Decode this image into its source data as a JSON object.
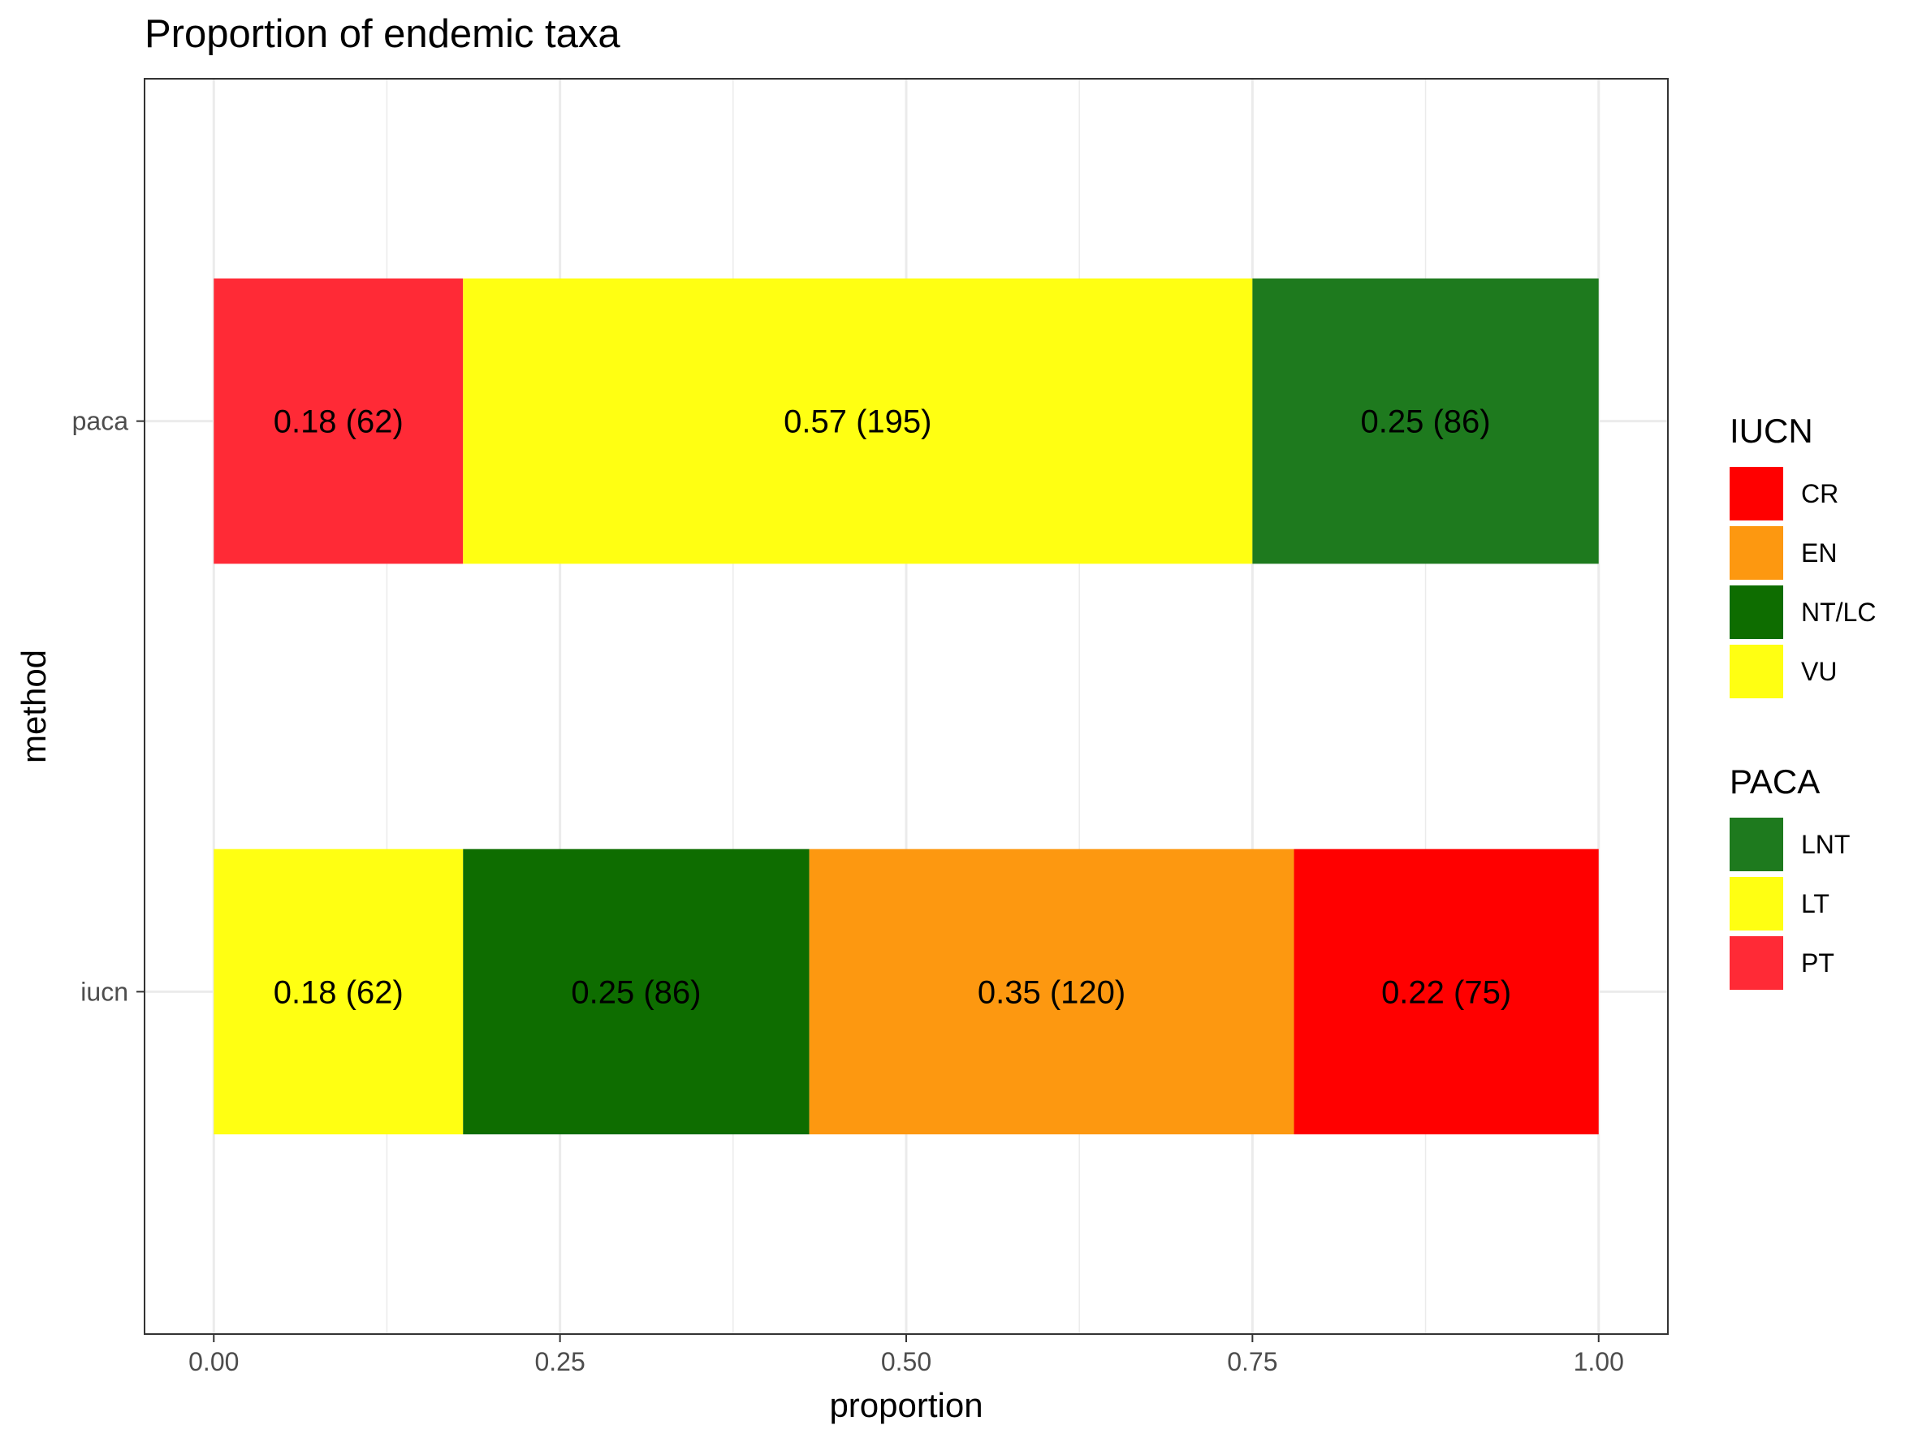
{
  "chart_data": {
    "type": "bar",
    "orientation": "horizontal",
    "stacked": true,
    "title": "Proportion of endemic taxa",
    "xlabel": "proportion",
    "ylabel": "method",
    "xlim": [
      -0.05,
      1.05
    ],
    "xticks": [
      0,
      0.25,
      0.5,
      0.75,
      1
    ],
    "xtick_labels": [
      "0.00",
      "0.25",
      "0.50",
      "0.75",
      "1.00"
    ],
    "grid": true,
    "legend_position": "right",
    "categories": [
      "paca",
      "iucn"
    ],
    "bars": [
      {
        "category": "paca",
        "segments": [
          {
            "group": "PACA",
            "key": "PT",
            "value": 0.18,
            "label": "0.18 (62)"
          },
          {
            "group": "PACA",
            "key": "LT",
            "value": 0.57,
            "label": "0.57 (195)"
          },
          {
            "group": "PACA",
            "key": "LNT",
            "value": 0.25,
            "label": "0.25 (86)"
          }
        ]
      },
      {
        "category": "iucn",
        "segments": [
          {
            "group": "IUCN",
            "key": "VU",
            "value": 0.18,
            "label": "0.18 (62)"
          },
          {
            "group": "IUCN",
            "key": "NT/LC",
            "value": 0.25,
            "label": "0.25 (86)"
          },
          {
            "group": "IUCN",
            "key": "EN",
            "value": 0.35,
            "label": "0.35 (120)"
          },
          {
            "group": "IUCN",
            "key": "CR",
            "value": 0.22,
            "label": "0.22 (75)"
          }
        ]
      }
    ],
    "legends": [
      {
        "title": "IUCN",
        "items": [
          {
            "key": "CR",
            "label": "CR",
            "color": "#ff0000"
          },
          {
            "key": "EN",
            "label": "EN",
            "color": "#fd9810"
          },
          {
            "key": "NT/LC",
            "label": "NT/LC",
            "color": "#0e6d00"
          },
          {
            "key": "VU",
            "label": "VU",
            "color": "#ffff12"
          }
        ]
      },
      {
        "title": "PACA",
        "items": [
          {
            "key": "LNT",
            "label": "LNT",
            "color": "#1e7a1e"
          },
          {
            "key": "LT",
            "label": "LT",
            "color": "#ffff12"
          },
          {
            "key": "PT",
            "label": "PT",
            "color": "#ff2a36"
          }
        ]
      }
    ]
  }
}
